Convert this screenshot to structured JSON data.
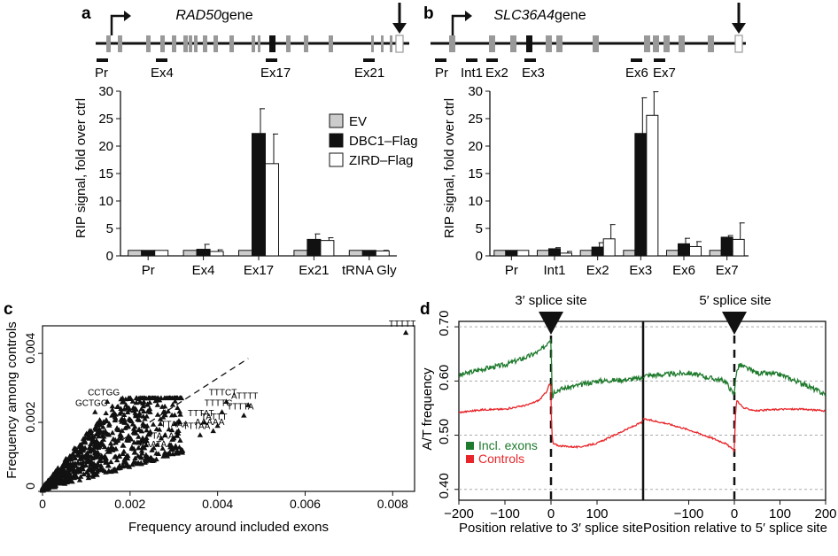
{
  "panels": {
    "a": {
      "label": "a",
      "gene_name": "RAD50",
      "gene_suffix": " gene",
      "segment_labels": [
        "Pr",
        "Ex4",
        "Ex17",
        "Ex21"
      ]
    },
    "b": {
      "label": "b",
      "gene_name": "SLC36A4",
      "gene_suffix": " gene",
      "segment_labels": [
        "Pr",
        "Int1",
        "Ex2",
        "Ex3",
        "Ex6",
        "Ex7"
      ]
    },
    "c": {
      "label": "c"
    },
    "d": {
      "label": "d",
      "site_labels": [
        "3′ splice site",
        "5′ splice site"
      ]
    }
  },
  "chart_data": [
    {
      "panel": "a",
      "type": "bar",
      "ylabel": "RIP signal, fold over ctrl",
      "ylim": [
        0,
        30
      ],
      "yticks": [
        0,
        5,
        10,
        15,
        20,
        25,
        30
      ],
      "categories": [
        "Pr",
        "Ex4",
        "Ex17",
        "Ex21",
        "tRNA Gly"
      ],
      "legend_position": "right",
      "series": [
        {
          "name": "EV",
          "color": "#cccccc",
          "values": [
            1.0,
            1.0,
            1.0,
            1.0,
            1.0
          ],
          "errors": [
            0,
            0,
            0,
            0,
            0
          ]
        },
        {
          "name": "DBC1–Flag",
          "color": "#111111",
          "values": [
            1.0,
            1.2,
            22.3,
            3.0,
            1.0
          ],
          "errors": [
            0,
            0.9,
            4.5,
            1.0,
            0
          ]
        },
        {
          "name": "ZIRD–Flag",
          "color": "#ffffff",
          "values": [
            1.0,
            0.8,
            16.8,
            2.8,
            0.9
          ],
          "errors": [
            0,
            0.3,
            5.4,
            0.5,
            0.1
          ]
        }
      ]
    },
    {
      "panel": "b",
      "type": "bar",
      "ylabel": "RIP signal, fold over ctrl",
      "ylim": [
        0,
        30
      ],
      "yticks": [
        0,
        5,
        10,
        15,
        20,
        25,
        30
      ],
      "categories": [
        "Pr",
        "Int1",
        "Ex2",
        "Ex3",
        "Ex6",
        "Ex7"
      ],
      "series": [
        {
          "name": "EV",
          "color": "#cccccc",
          "values": [
            1.0,
            1.0,
            1.0,
            1.0,
            1.0,
            1.0
          ],
          "errors": [
            0,
            0,
            0,
            0,
            0,
            0
          ]
        },
        {
          "name": "DBC1–Flag",
          "color": "#111111",
          "values": [
            1.0,
            1.3,
            1.6,
            22.3,
            2.2,
            3.4
          ],
          "errors": [
            0,
            0.2,
            0.8,
            6.5,
            1.0,
            0.3
          ]
        },
        {
          "name": "ZIRD–Flag",
          "color": "#ffffff",
          "values": [
            1.0,
            0.5,
            3.1,
            25.6,
            1.7,
            3.0
          ],
          "errors": [
            0,
            0.3,
            2.6,
            4.3,
            0.9,
            3.0
          ]
        }
      ]
    },
    {
      "panel": "c",
      "type": "scatter",
      "xlabel": "Frequency around included exons",
      "ylabel": "Frequency among controls",
      "xlim": [
        0,
        0.0085
      ],
      "ylim": [
        0,
        0.0048
      ],
      "xticks": [
        0,
        0.002,
        0.004,
        0.006,
        0.008
      ],
      "xtick_labels": [
        "0",
        "0.002",
        "0.004",
        "0.006",
        "0.008"
      ],
      "yticks": [
        0,
        0.002,
        0.004
      ],
      "ytick_labels": [
        "0",
        "0.002",
        "0.004"
      ],
      "diagonal_line": true,
      "labeled_points": [
        {
          "label": "TTTTT",
          "x": 0.0083,
          "y": 0.0046
        },
        {
          "label": "CCTGG",
          "x": 0.00148,
          "y": 0.0026
        },
        {
          "label": "GCTGG",
          "x": 0.0012,
          "y": 0.0023
        },
        {
          "label": "TTTCT",
          "x": 0.0042,
          "y": 0.0026
        },
        {
          "label": "ATTTT",
          "x": 0.0047,
          "y": 0.0025
        },
        {
          "label": "TTTTC",
          "x": 0.0041,
          "y": 0.0023
        },
        {
          "label": "TTTTA",
          "x": 0.0046,
          "y": 0.0022
        },
        {
          "label": "TTTAT",
          "x": 0.0037,
          "y": 0.002
        },
        {
          "label": "TATTT",
          "x": 0.004,
          "y": 0.0019
        },
        {
          "label": "AAAAA",
          "x": 0.0039,
          "y": 0.00175
        },
        {
          "label": "TTAAA",
          "x": 0.0031,
          "y": 0.00168
        },
        {
          "label": "TTTAA",
          "x": 0.0036,
          "y": 0.00163
        },
        {
          "label": "TAAAA",
          "x": 0.0029,
          "y": 0.00135
        },
        {
          "label": "AAATA",
          "x": 0.0026,
          "y": 0.0011
        }
      ]
    },
    {
      "panel": "d",
      "type": "line",
      "ylabel": "A/T frequency",
      "ylim": [
        0.38,
        0.71
      ],
      "yticks": [
        0.4,
        0.5,
        0.6,
        0.7
      ],
      "ytick_labels": [
        "0.40",
        "0.50",
        "0.60",
        "0.70"
      ],
      "gridlines_y": [
        0.4,
        0.5,
        0.6,
        0.7
      ],
      "subplots": [
        {
          "xlabel": "Position relative to 3′ splice site",
          "xlim": [
            -200,
            200
          ],
          "xticks": [
            -200,
            -100,
            0,
            100
          ]
        },
        {
          "xlabel": "Position relative to 5′ splice site",
          "xlim": [
            -200,
            200
          ],
          "xticks": [
            -100,
            0,
            100,
            200
          ]
        }
      ],
      "tick_labels_x": [
        "−200",
        "−100",
        "0",
        "100",
        "−100",
        "0",
        "100",
        "200"
      ],
      "legend_position": "bottom-left",
      "series": [
        {
          "name": "Incl. exons",
          "color": "#1e7a2c",
          "three_prime": [
            [
              -200,
              0.61
            ],
            [
              -150,
              0.622
            ],
            [
              -100,
              0.63
            ],
            [
              -50,
              0.645
            ],
            [
              -25,
              0.655
            ],
            [
              -12,
              0.665
            ],
            [
              -5,
              0.675
            ],
            [
              0,
              0.68
            ],
            [
              1,
              0.64
            ],
            [
              3,
              0.56
            ],
            [
              5,
              0.58
            ],
            [
              20,
              0.585
            ],
            [
              60,
              0.592
            ],
            [
              100,
              0.6
            ],
            [
              150,
              0.602
            ],
            [
              200,
              0.605
            ]
          ],
          "five_prime": [
            [
              -200,
              0.61
            ],
            [
              -150,
              0.612
            ],
            [
              -100,
              0.615
            ],
            [
              -50,
              0.605
            ],
            [
              -20,
              0.6
            ],
            [
              -5,
              0.58
            ],
            [
              0,
              0.575
            ],
            [
              2,
              0.605
            ],
            [
              10,
              0.63
            ],
            [
              50,
              0.615
            ],
            [
              100,
              0.612
            ],
            [
              150,
              0.595
            ],
            [
              200,
              0.575
            ]
          ]
        },
        {
          "name": "Controls",
          "color": "#e8262a",
          "three_prime": [
            [
              -200,
              0.542
            ],
            [
              -150,
              0.547
            ],
            [
              -100,
              0.548
            ],
            [
              -50,
              0.556
            ],
            [
              -25,
              0.565
            ],
            [
              -10,
              0.58
            ],
            [
              -3,
              0.595
            ],
            [
              0,
              0.59
            ],
            [
              1,
              0.53
            ],
            [
              3,
              0.49
            ],
            [
              5,
              0.484
            ],
            [
              20,
              0.48
            ],
            [
              60,
              0.478
            ],
            [
              100,
              0.485
            ],
            [
              150,
              0.505
            ],
            [
              200,
              0.525
            ]
          ],
          "five_prime": [
            [
              -200,
              0.53
            ],
            [
              -150,
              0.522
            ],
            [
              -100,
              0.51
            ],
            [
              -50,
              0.495
            ],
            [
              -20,
              0.485
            ],
            [
              -5,
              0.475
            ],
            [
              0,
              0.47
            ],
            [
              2,
              0.53
            ],
            [
              5,
              0.565
            ],
            [
              20,
              0.55
            ],
            [
              50,
              0.545
            ],
            [
              100,
              0.548
            ],
            [
              150,
              0.548
            ],
            [
              200,
              0.545
            ]
          ]
        }
      ]
    }
  ]
}
